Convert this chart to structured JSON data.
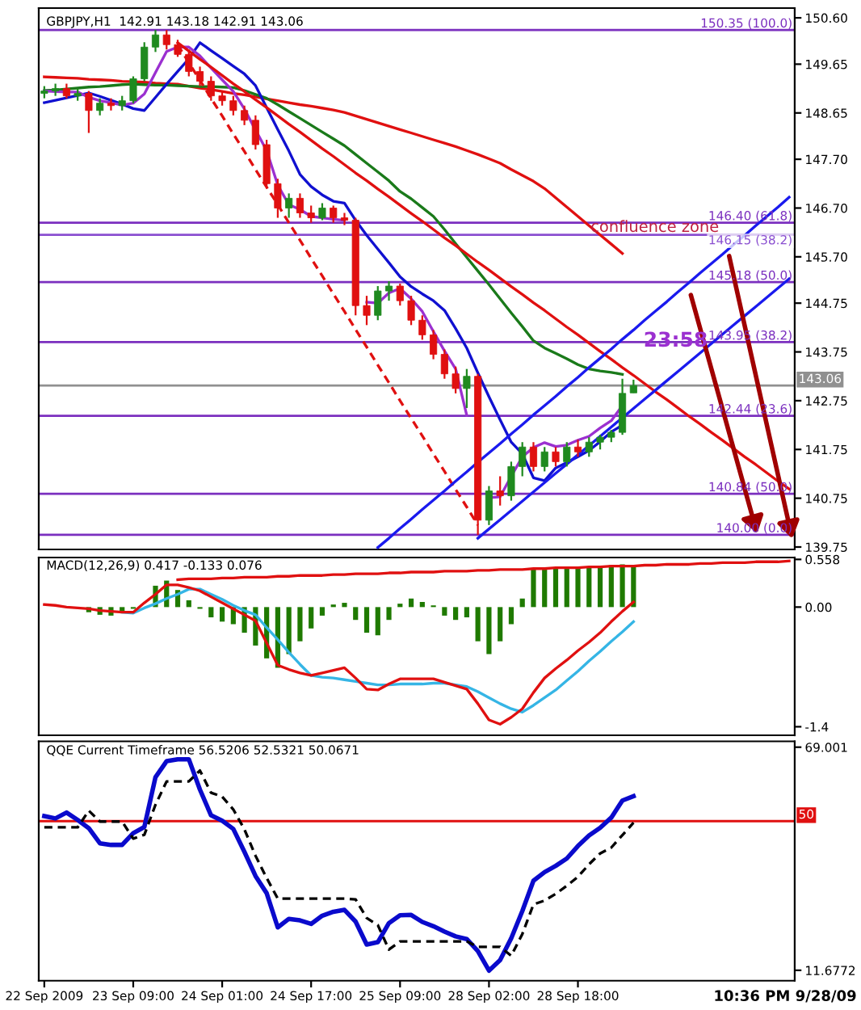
{
  "chart_data": [
    {
      "type": "candlestick",
      "title": "GBPJPY,H1  142.91 143.18 142.91 143.06",
      "ylim": [
        139.7,
        150.8
      ],
      "grid": false,
      "legend": false,
      "categories": [
        null,
        null,
        null,
        null,
        null,
        null,
        null,
        null,
        null,
        null,
        null,
        null,
        null,
        null,
        null,
        null,
        null,
        null,
        null,
        null,
        null,
        null,
        null,
        null,
        null,
        null,
        null,
        null,
        null,
        null,
        null,
        null,
        null,
        null,
        null,
        null,
        null,
        null,
        null,
        null,
        null,
        null,
        null,
        null,
        null,
        null,
        null,
        null,
        null,
        null,
        null,
        null,
        null,
        null,
        null,
        null,
        null,
        null,
        null,
        null,
        null,
        null,
        null,
        null,
        null,
        null,
        null,
        null
      ],
      "yticks": [
        {
          "value": 150.6,
          "label": "150.60"
        },
        149.65,
        148.65,
        {
          "value": 147.7,
          "label": "147.70"
        },
        {
          "value": 146.7,
          "label": "146.70"
        },
        {
          "value": 145.7,
          "label": "145.70"
        },
        144.75,
        143.75,
        142.75,
        141.75,
        140.75,
        139.75
      ],
      "series": [
        {
          "type": "candlestick",
          "ohlc": [
            [
              149.05,
              149.2,
              148.95,
              149.1
            ],
            [
              149.1,
              149.25,
              149.0,
              149.15
            ],
            [
              149.15,
              149.25,
              148.95,
              149.0
            ],
            [
              149.0,
              149.15,
              148.9,
              149.05
            ],
            [
              149.05,
              149.1,
              148.24,
              148.7
            ],
            [
              148.7,
              148.95,
              148.6,
              148.85
            ],
            [
              148.85,
              148.95,
              148.7,
              148.8
            ],
            [
              148.8,
              149.0,
              148.7,
              148.9
            ],
            [
              148.9,
              149.4,
              148.85,
              149.35
            ],
            [
              149.35,
              150.1,
              149.3,
              150.0
            ],
            [
              150.0,
              150.35,
              149.9,
              150.25
            ],
            [
              150.25,
              150.35,
              149.95,
              150.05
            ],
            [
              150.05,
              150.15,
              149.8,
              149.85
            ],
            [
              149.85,
              149.95,
              149.4,
              149.5
            ],
            [
              149.5,
              149.6,
              149.2,
              149.3
            ],
            [
              149.3,
              149.4,
              148.9,
              149.0
            ],
            [
              149.0,
              149.1,
              148.8,
              148.9
            ],
            [
              148.9,
              149.0,
              148.6,
              148.7
            ],
            [
              148.7,
              148.8,
              148.4,
              148.5
            ],
            [
              148.5,
              148.6,
              147.9,
              148.0
            ],
            [
              148.0,
              148.1,
              147.1,
              147.2
            ],
            [
              147.2,
              147.3,
              146.5,
              146.7
            ],
            [
              146.7,
              147.0,
              146.5,
              146.9
            ],
            [
              146.9,
              147.0,
              146.5,
              146.6
            ],
            [
              146.6,
              146.75,
              146.4,
              146.5
            ],
            [
              146.5,
              146.8,
              146.45,
              146.7
            ],
            [
              146.7,
              146.75,
              146.4,
              146.5
            ],
            [
              146.5,
              146.6,
              146.35,
              146.45
            ],
            [
              146.45,
              146.5,
              144.5,
              144.7
            ],
            [
              144.7,
              144.9,
              144.3,
              144.5
            ],
            [
              144.5,
              145.1,
              144.4,
              145.0
            ],
            [
              145.0,
              145.2,
              144.8,
              145.1
            ],
            [
              145.1,
              145.15,
              144.7,
              144.8
            ],
            [
              144.8,
              144.9,
              144.3,
              144.4
            ],
            [
              144.4,
              144.5,
              144.0,
              144.1
            ],
            [
              144.1,
              144.2,
              143.6,
              143.7
            ],
            [
              143.7,
              143.8,
              143.2,
              143.3
            ],
            [
              143.3,
              143.45,
              142.9,
              143.0
            ],
            [
              143.0,
              143.4,
              142.6,
              143.25
            ],
            [
              143.25,
              143.3,
              140.0,
              140.3
            ],
            [
              140.3,
              141.0,
              140.2,
              140.9
            ],
            [
              140.9,
              141.2,
              140.6,
              140.8
            ],
            [
              140.8,
              141.5,
              140.7,
              141.4
            ],
            [
              141.4,
              141.9,
              141.2,
              141.8
            ],
            [
              141.8,
              141.9,
              141.3,
              141.4
            ],
            [
              141.4,
              141.8,
              141.3,
              141.7
            ],
            [
              141.7,
              141.8,
              141.4,
              141.5
            ],
            [
              141.5,
              141.9,
              141.4,
              141.8
            ],
            [
              141.8,
              141.95,
              141.6,
              141.7
            ],
            [
              141.7,
              142.0,
              141.6,
              141.9
            ],
            [
              141.9,
              142.05,
              141.75,
              142.0
            ],
            [
              142.0,
              142.15,
              141.9,
              142.1
            ],
            [
              142.1,
              143.2,
              142.05,
              142.9
            ],
            [
              142.91,
              143.18,
              142.91,
              143.06
            ],
            null,
            null,
            null,
            null,
            null,
            null,
            null,
            null,
            null,
            null,
            null,
            null,
            null,
            null
          ],
          "colors": [
            "#1f8a1f",
            "#1f8a1f",
            "#e01010",
            "#1f8a1f",
            "#e01010",
            "#1f8a1f",
            "#e01010",
            "#1f8a1f",
            "#1f8a1f",
            "#1f8a1f",
            "#1f8a1f",
            "#e01010",
            "#e01010",
            "#e01010",
            "#e01010",
            "#e01010",
            "#e01010",
            "#e01010",
            "#e01010",
            "#e01010",
            "#e01010",
            "#e01010",
            "#1f8a1f",
            "#e01010",
            "#e01010",
            "#1f8a1f",
            "#e01010",
            "#e01010",
            "#e01010",
            "#e01010",
            "#1f8a1f",
            "#1f8a1f",
            "#e01010",
            "#e01010",
            "#e01010",
            "#e01010",
            "#e01010",
            "#e01010",
            "#1f8a1f",
            "#e01010",
            "#1f8a1f",
            "#e01010",
            "#1f8a1f",
            "#1f8a1f",
            "#e01010",
            "#1f8a1f",
            "#e01010",
            "#1f8a1f",
            "#e01010",
            "#1f8a1f",
            "#1f8a1f",
            "#1f8a1f",
            "#1f8a1f",
            "#1f8a1f",
            null,
            null,
            null,
            null,
            null,
            null,
            null,
            null,
            null,
            null,
            null,
            null,
            null,
            null
          ]
        },
        {
          "type": "line",
          "color": "#e01010",
          "values": [
            149.39,
            149.38,
            149.37,
            149.36,
            149.34,
            149.33,
            149.32,
            149.3,
            149.29,
            149.28,
            149.26,
            149.25,
            149.24,
            149.2,
            149.16,
            149.13,
            149.09,
            149.05,
            149.02,
            148.98,
            148.94,
            148.9,
            148.86,
            148.82,
            148.79,
            148.75,
            148.71,
            148.66,
            148.59,
            148.52,
            148.45,
            148.38,
            148.31,
            148.24,
            148.17,
            148.1,
            148.03,
            147.96,
            147.88,
            147.8,
            147.71,
            147.62,
            147.49,
            147.37,
            147.25,
            147.1,
            146.91,
            146.72,
            146.53,
            146.34,
            146.15,
            145.96,
            145.77,
            null,
            null,
            null,
            null,
            null,
            null,
            null,
            null,
            null,
            null,
            null,
            null,
            null,
            null,
            null
          ]
        },
        {
          "type": "line",
          "color": "#1a7a1a",
          "values": [
            149.11,
            149.12,
            149.14,
            149.16,
            149.18,
            149.19,
            149.21,
            149.23,
            149.24,
            149.23,
            149.22,
            149.22,
            149.21,
            149.2,
            149.19,
            149.19,
            149.18,
            149.17,
            149.11,
            149.03,
            148.95,
            148.82,
            148.68,
            148.54,
            148.4,
            148.26,
            148.12,
            147.98,
            147.8,
            147.62,
            147.44,
            147.26,
            147.04,
            146.89,
            146.71,
            146.53,
            146.26,
            145.97,
            145.69,
            145.41,
            145.13,
            144.84,
            144.55,
            144.27,
            143.98,
            143.83,
            143.72,
            143.61,
            143.49,
            143.4,
            143.36,
            143.33,
            143.29,
            null,
            null,
            null,
            null,
            null,
            null,
            null,
            null,
            null,
            null,
            null,
            null,
            null,
            null,
            null
          ]
        },
        {
          "type": "line",
          "color": "#1010d0",
          "values": [
            148.86,
            148.91,
            148.96,
            149.01,
            149.06,
            148.99,
            148.91,
            148.83,
            148.74,
            148.7,
            148.97,
            149.24,
            149.5,
            149.76,
            150.09,
            149.93,
            149.77,
            149.61,
            149.45,
            149.21,
            148.76,
            148.31,
            147.87,
            147.39,
            147.14,
            146.97,
            146.84,
            146.8,
            146.45,
            146.14,
            145.86,
            145.58,
            145.29,
            145.09,
            144.94,
            144.8,
            144.6,
            144.23,
            143.83,
            143.32,
            142.83,
            142.36,
            141.9,
            141.66,
            141.17,
            141.11,
            141.37,
            141.48,
            141.6,
            141.73,
            141.91,
            142.11,
            142.25,
            null,
            null,
            null,
            null,
            null,
            null,
            null,
            null,
            null,
            null,
            null,
            null,
            null,
            null,
            null
          ]
        },
        {
          "type": "line",
          "color": "#9b30d0",
          "values": [
            149.1,
            149.09,
            149.08,
            149.08,
            148.97,
            148.9,
            148.86,
            148.81,
            148.85,
            149.04,
            149.48,
            149.91,
            150.0,
            150.0,
            149.82,
            149.57,
            149.33,
            149.09,
            148.73,
            148.3,
            147.88,
            147.17,
            146.77,
            146.67,
            146.53,
            146.5,
            146.47,
            146.45,
            null,
            144.77,
            144.75,
            144.96,
            145.05,
            144.84,
            144.58,
            144.17,
            143.77,
            143.4,
            142.45,
            null,
            140.76,
            140.78,
            141.2,
            141.6,
            141.79,
            141.89,
            141.81,
            141.84,
            141.94,
            142.02,
            142.19,
            142.34,
            142.65,
            null,
            null,
            null,
            null,
            null,
            null,
            null,
            null,
            null,
            null,
            null,
            null,
            null,
            null,
            null
          ]
        },
        {
          "type": "line",
          "color": "#e01010",
          "values": [
            null,
            null,
            null,
            null,
            null,
            null,
            null,
            null,
            null,
            null,
            null,
            null,
            150.09,
            149.92,
            149.75,
            149.59,
            149.42,
            149.25,
            149.09,
            148.92,
            148.76,
            148.59,
            148.42,
            148.26,
            148.09,
            147.92,
            147.76,
            147.59,
            147.42,
            147.26,
            147.09,
            146.93,
            146.76,
            146.59,
            146.43,
            146.26,
            146.09,
            145.93,
            145.76,
            145.59,
            145.43,
            145.26,
            145.09,
            144.93,
            144.76,
            144.6,
            144.43,
            144.26,
            144.1,
            143.93,
            143.76,
            143.6,
            143.43,
            143.27,
            143.1,
            142.93,
            142.77,
            142.6,
            142.43,
            142.27,
            142.1,
            141.94,
            141.77,
            141.6,
            141.44,
            141.27,
            141.1,
            140.94
          ]
        },
        {
          "type": "line",
          "color": "#e01010",
          "line_style": "dashed",
          "values": [
            null,
            null,
            null,
            null,
            null,
            null,
            null,
            null,
            null,
            null,
            null,
            null,
            150.05,
            149.68,
            149.32,
            148.95,
            148.59,
            148.22,
            147.86,
            147.49,
            147.13,
            146.77,
            146.4,
            146.04,
            145.67,
            145.31,
            144.94,
            144.58,
            144.21,
            143.85,
            143.48,
            143.12,
            142.75,
            142.39,
            142.03,
            141.66,
            141.3,
            140.93,
            140.57,
            140.2,
            null,
            null,
            null,
            null,
            null,
            null,
            null,
            null,
            null,
            null,
            null,
            null,
            null,
            null,
            null,
            null,
            null,
            null,
            null,
            null,
            null,
            null,
            null,
            null,
            null,
            null,
            null,
            null
          ]
        },
        {
          "type": "line",
          "color": "#1a1aee",
          "values": [
            null,
            null,
            null,
            null,
            null,
            null,
            null,
            null,
            null,
            null,
            null,
            null,
            null,
            null,
            null,
            null,
            null,
            null,
            null,
            null,
            null,
            null,
            null,
            null,
            null,
            null,
            null,
            null,
            null,
            null,
            139.74,
            139.93,
            140.13,
            140.32,
            140.52,
            140.71,
            140.9,
            141.1,
            141.29,
            141.49,
            141.68,
            141.87,
            142.07,
            142.26,
            142.46,
            142.65,
            142.84,
            143.04,
            143.23,
            143.43,
            143.62,
            143.81,
            144.01,
            144.2,
            144.4,
            144.59,
            144.78,
            144.98,
            145.17,
            145.37,
            145.56,
            145.75,
            145.95,
            146.14,
            146.34,
            146.53,
            146.72,
            146.92
          ]
        },
        {
          "type": "line",
          "color": "#1a1aee",
          "values": [
            null,
            null,
            null,
            null,
            null,
            null,
            null,
            null,
            null,
            null,
            null,
            null,
            null,
            null,
            null,
            null,
            null,
            null,
            null,
            null,
            null,
            null,
            null,
            null,
            null,
            null,
            null,
            null,
            null,
            null,
            null,
            null,
            null,
            null,
            null,
            null,
            null,
            null,
            null,
            139.93,
            140.12,
            140.31,
            140.5,
            140.69,
            140.88,
            141.07,
            141.26,
            141.45,
            141.64,
            141.83,
            142.02,
            142.21,
            142.4,
            142.59,
            142.78,
            142.97,
            143.16,
            143.35,
            143.54,
            143.73,
            143.92,
            144.11,
            144.3,
            144.49,
            144.68,
            144.87,
            145.06,
            145.25
          ]
        }
      ],
      "ref_lines": [
        {
          "axis": "y",
          "value": 150.35,
          "label": "150.35 (100.0)",
          "color": "#7b2fbf"
        },
        {
          "axis": "y",
          "value": 146.4,
          "label": "146.40 (61.8)",
          "color": "#7b2fbf"
        },
        {
          "axis": "y",
          "value": 146.15,
          "label": "146.15 (38.2)",
          "color": "#8a4fd0"
        },
        {
          "axis": "y",
          "value": 145.18,
          "label": "145.18 (50.0)",
          "color": "#7b2fbf"
        },
        {
          "axis": "y",
          "value": 143.95,
          "label": "143.95 (38.2)",
          "color": "#7b2fbf"
        },
        {
          "axis": "y",
          "value": 143.06,
          "color": "#909090"
        },
        {
          "axis": "y",
          "value": 142.44,
          "label": "142.44 (23.6)",
          "color": "#7b2fbf"
        },
        {
          "axis": "y",
          "value": 140.84,
          "label": "140.84 (50.0)",
          "color": "#7b2fbf"
        },
        {
          "axis": "y",
          "value": 140.0,
          "label": "140.00 (0.0)",
          "color": "#7b2fbf"
        }
      ],
      "annotations": [
        {
          "text": "confluence zone",
          "y": 146.3
        },
        "23:58",
        "143.06"
      ]
    },
    {
      "type": "bar",
      "title": "MACD(12,26,9) 0.417 -0.133 0.076",
      "ylim": [
        -1.5,
        0.58
      ],
      "grid": false,
      "legend": false,
      "categories": [
        null,
        null,
        null,
        null,
        null,
        null,
        null,
        null,
        null,
        null,
        null,
        null,
        null,
        null,
        null,
        null,
        null,
        null,
        null,
        null,
        null,
        null,
        null,
        null,
        null,
        null,
        null,
        null,
        null,
        null,
        null,
        null,
        null,
        null,
        null,
        null,
        null,
        null,
        null,
        null,
        null,
        null,
        null,
        null,
        null,
        null,
        null,
        null,
        null,
        null,
        null,
        null,
        null,
        null,
        null,
        null,
        null,
        null,
        null,
        null,
        null,
        null,
        null,
        null,
        null,
        null,
        null,
        null
      ],
      "yticks": [
        0.558,
        {
          "value": 0,
          "label": "0.00"
        },
        -1.4
      ],
      "series": [
        {
          "type": "bar",
          "color": "#1f7a00",
          "values": [
            0,
            null,
            null,
            null,
            -0.06,
            -0.09,
            -0.1,
            -0.06,
            -0.02,
            null,
            0.25,
            0.31,
            0.2,
            0.08,
            -0.02,
            -0.12,
            -0.17,
            -0.2,
            -0.3,
            -0.45,
            -0.6,
            -0.71,
            -0.55,
            -0.4,
            -0.25,
            -0.1,
            0.03,
            0.05,
            -0.15,
            -0.3,
            -0.33,
            -0.15,
            0.04,
            0.1,
            0.06,
            0.02,
            -0.1,
            -0.15,
            -0.12,
            -0.4,
            -0.55,
            -0.4,
            -0.2,
            0.1,
            0.45,
            0.46,
            0.46,
            0.47,
            0.47,
            0.47,
            0.48,
            0.49,
            0.5,
            0.48,
            null,
            null,
            null,
            null,
            null,
            null,
            null,
            null,
            null,
            null,
            null,
            null,
            null,
            null
          ]
        },
        {
          "type": "line",
          "color": "#35b5e5",
          "values": [
            null,
            null,
            null,
            null,
            null,
            null,
            null,
            -0.06,
            -0.07,
            -0.01,
            0.04,
            0.1,
            0.15,
            0.21,
            0.21,
            0.15,
            0.09,
            0.02,
            -0.04,
            -0.09,
            -0.24,
            -0.38,
            -0.53,
            -0.67,
            -0.8,
            -0.82,
            -0.83,
            -0.85,
            -0.87,
            -0.89,
            -0.91,
            -0.91,
            -0.9,
            -0.9,
            -0.9,
            -0.89,
            -0.89,
            -0.91,
            -0.93,
            -0.99,
            -1.06,
            -1.13,
            -1.19,
            -1.23,
            -1.15,
            -1.06,
            -0.97,
            -0.86,
            -0.75,
            -0.63,
            -0.52,
            -0.4,
            -0.29,
            -0.17,
            null,
            null,
            null,
            null,
            null,
            null,
            null,
            null,
            null,
            null,
            null,
            null,
            null,
            null
          ]
        },
        {
          "type": "line",
          "color": "#e01010",
          "values": [
            0.03,
            0.02,
            0.0,
            -0.01,
            -0.02,
            -0.04,
            -0.05,
            -0.06,
            -0.06,
            0.05,
            0.15,
            0.26,
            0.26,
            0.23,
            0.19,
            0.12,
            0.05,
            -0.02,
            -0.09,
            -0.16,
            -0.42,
            -0.68,
            -0.73,
            -0.77,
            -0.8,
            -0.77,
            -0.74,
            -0.71,
            -0.83,
            -0.96,
            -0.97,
            -0.9,
            -0.84,
            -0.84,
            -0.84,
            -0.84,
            -0.88,
            -0.92,
            -0.96,
            -1.13,
            -1.32,
            -1.37,
            -1.29,
            -1.19,
            -1.0,
            -0.83,
            -0.72,
            -0.62,
            -0.51,
            -0.41,
            -0.3,
            -0.17,
            -0.05,
            0.06,
            null,
            null,
            null,
            null,
            null,
            null,
            null,
            null,
            null,
            null,
            null,
            null,
            null,
            null
          ]
        },
        {
          "type": "line",
          "color": "#e01010",
          "values": [
            null,
            null,
            null,
            null,
            null,
            null,
            null,
            null,
            null,
            null,
            null,
            null,
            0.32,
            0.33,
            0.33,
            0.33,
            0.34,
            0.34,
            0.35,
            0.35,
            0.35,
            0.36,
            0.36,
            0.37,
            0.37,
            0.37,
            0.38,
            0.38,
            0.39,
            0.39,
            0.39,
            0.4,
            0.4,
            0.41,
            0.41,
            0.41,
            0.42,
            0.42,
            0.42,
            0.43,
            0.43,
            0.44,
            0.44,
            0.44,
            0.45,
            0.45,
            0.46,
            0.46,
            0.46,
            0.47,
            0.47,
            0.48,
            0.48,
            0.48,
            0.49,
            0.49,
            0.5,
            0.5,
            0.5,
            0.51,
            0.51,
            0.52,
            0.52,
            0.52,
            0.53,
            0.53,
            0.53,
            0.54
          ]
        }
      ]
    },
    {
      "type": "line",
      "title": "QQE Current Timeframe 56.5206 52.5321 50.0671",
      "ylim": [
        9,
        70.5
      ],
      "grid": false,
      "legend": false,
      "categories": [
        "22 Sep 2009",
        null,
        null,
        null,
        null,
        null,
        null,
        null,
        "23 Sep 09:00",
        null,
        null,
        null,
        null,
        null,
        null,
        null,
        "24 Sep 01:00",
        null,
        null,
        null,
        null,
        null,
        null,
        null,
        "24 Sep 17:00",
        null,
        null,
        null,
        null,
        null,
        null,
        null,
        "25 Sep 09:00",
        null,
        null,
        null,
        null,
        null,
        null,
        null,
        "28 Sep 02:00",
        null,
        null,
        null,
        null,
        null,
        null,
        null,
        "28 Sep 18:00",
        null,
        null,
        null,
        null,
        null,
        null,
        null,
        null,
        null,
        null,
        null,
        null,
        null,
        null,
        null,
        null,
        null,
        null,
        null
      ],
      "yticks": [
        69.001,
        11.6772
      ],
      "series": [
        {
          "color": "#0a0acc",
          "values": [
            51.3,
            50.7,
            52.2,
            50.3,
            48.2,
            44.3,
            43.9,
            43.9,
            46.9,
            48.5,
            61.3,
            65.4,
            65.9,
            65.9,
            58.1,
            51.5,
            50.1,
            48.0,
            42.1,
            35.9,
            31.5,
            22.7,
            24.9,
            24.5,
            23.6,
            25.7,
            26.7,
            27.2,
            24.2,
            18.3,
            18.9,
            23.8,
            25.8,
            25.9,
            24.1,
            23.0,
            21.6,
            20.4,
            19.7,
            16.6,
            11.6,
            14.3,
            19.9,
            26.9,
            34.7,
            36.9,
            38.5,
            40.4,
            43.6,
            46.3,
            48.3,
            50.9,
            55.3,
            56.4,
            null,
            null,
            null,
            null,
            null,
            null,
            null,
            null,
            null,
            null,
            null,
            null,
            null,
            null
          ]
        },
        {
          "color": "#000000",
          "line_style": "dashed",
          "values": [
            48.4,
            48.4,
            48.4,
            48.4,
            52.7,
            49.9,
            49.9,
            49.9,
            45.5,
            46.5,
            54.2,
            60.2,
            60.2,
            60.2,
            63.0,
            57.3,
            56.3,
            53.0,
            47.9,
            41.1,
            35.4,
            30.1,
            30.1,
            30.1,
            30.1,
            30.1,
            30.1,
            30.1,
            29.9,
            25.1,
            23.3,
            17.0,
            19.1,
            19.1,
            19.1,
            19.1,
            19.1,
            19.1,
            19.1,
            17.7,
            17.7,
            17.7,
            15.4,
            21.0,
            28.6,
            29.6,
            31.3,
            33.4,
            35.7,
            38.9,
            41.7,
            43.2,
            46.4,
            49.6,
            null,
            null,
            null,
            null,
            null,
            null,
            null,
            null,
            null,
            null,
            null,
            null,
            null,
            null
          ]
        }
      ],
      "ref_lines": [
        {
          "axis": "y",
          "value": 50,
          "color": "#e01010"
        }
      ],
      "annotations": [
        "50",
        "10:36 PM 9/28/09"
      ]
    }
  ]
}
